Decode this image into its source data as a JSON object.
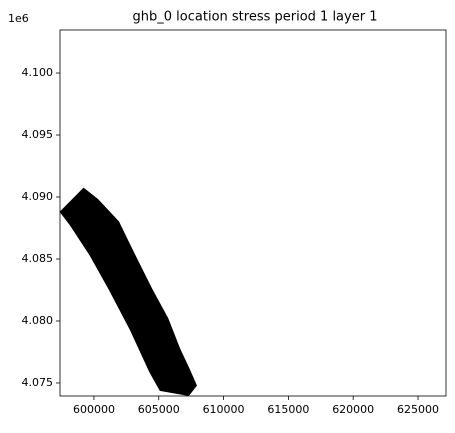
{
  "chart_data": {
    "type": "polygon",
    "title": "ghb_0 location stress period 1 layer 1",
    "y_offset_label": "1e6",
    "color": "#000000",
    "x": [
      597400,
      599200,
      600300,
      601900,
      602500,
      603400,
      604500,
      605700,
      606600,
      607400,
      607900,
      607300,
      605100,
      604300,
      602800,
      601200,
      599700,
      598200
    ],
    "values": [
      4088800,
      4090700,
      4089800,
      4088000,
      4086700,
      4084800,
      4082500,
      4080200,
      4077800,
      4076000,
      4074800,
      4074000,
      4074400,
      4075900,
      4079300,
      4082500,
      4085300,
      4087700
    ],
    "xlim": [
      597380,
      627160
    ],
    "ylim": [
      4073950,
      4103470
    ],
    "xticks": [
      600000,
      605000,
      610000,
      615000,
      620000,
      625000
    ],
    "yticks": [
      {
        "value": 4075000,
        "label": "4.075"
      },
      {
        "value": 4080000,
        "label": "4.080"
      },
      {
        "value": 4085000,
        "label": "4.085"
      },
      {
        "value": 4090000,
        "label": "4.090"
      },
      {
        "value": 4095000,
        "label": "4.095"
      },
      {
        "value": 4100000,
        "label": "4.100"
      }
    ]
  }
}
